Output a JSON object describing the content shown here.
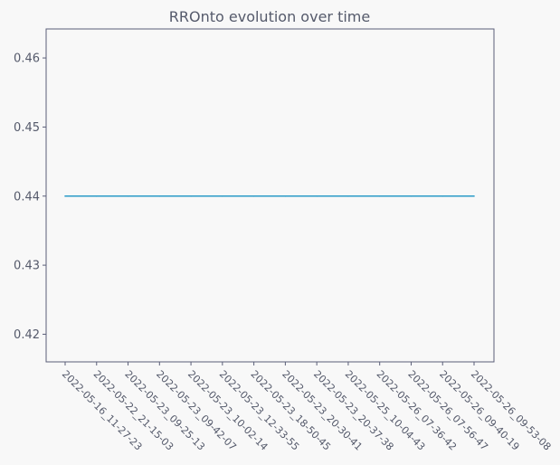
{
  "chart_data": {
    "type": "line",
    "title": "RROnto evolution over time",
    "xlabel": "",
    "ylabel": "",
    "categories": [
      "2022-05-16_11-27-23",
      "2022-05-22_21-15-03",
      "2022-05-23_09-25-13",
      "2022-05-23_09-42-07",
      "2022-05-23_10-02-14",
      "2022-05-23_12-33-55",
      "2022-05-23_18-50-45",
      "2022-05-23_20-30-41",
      "2022-05-23_20-37-38",
      "2022-05-25_10-04-43",
      "2022-05-26_07-36-42",
      "2022-05-26_07-56-47",
      "2022-05-26_09-40-19",
      "2022-05-26_09-53-08"
    ],
    "series": [
      {
        "values": [
          0.44,
          0.44,
          0.44,
          0.44,
          0.44,
          0.44,
          0.44,
          0.44,
          0.44,
          0.44,
          0.44,
          0.44,
          0.44,
          0.44
        ]
      }
    ],
    "ylim": [
      0.416,
      0.4642
    ],
    "yticks": [
      0.42,
      0.43,
      0.44,
      0.45,
      0.46
    ],
    "ytick_labels": [
      "0.42",
      "0.43",
      "0.44",
      "0.45",
      "0.46"
    ],
    "grid": false,
    "colors": {
      "line": "#2a9bc8",
      "axes": "#5a5e78",
      "background": "#f8f8f8",
      "text": "#555a6b"
    }
  }
}
